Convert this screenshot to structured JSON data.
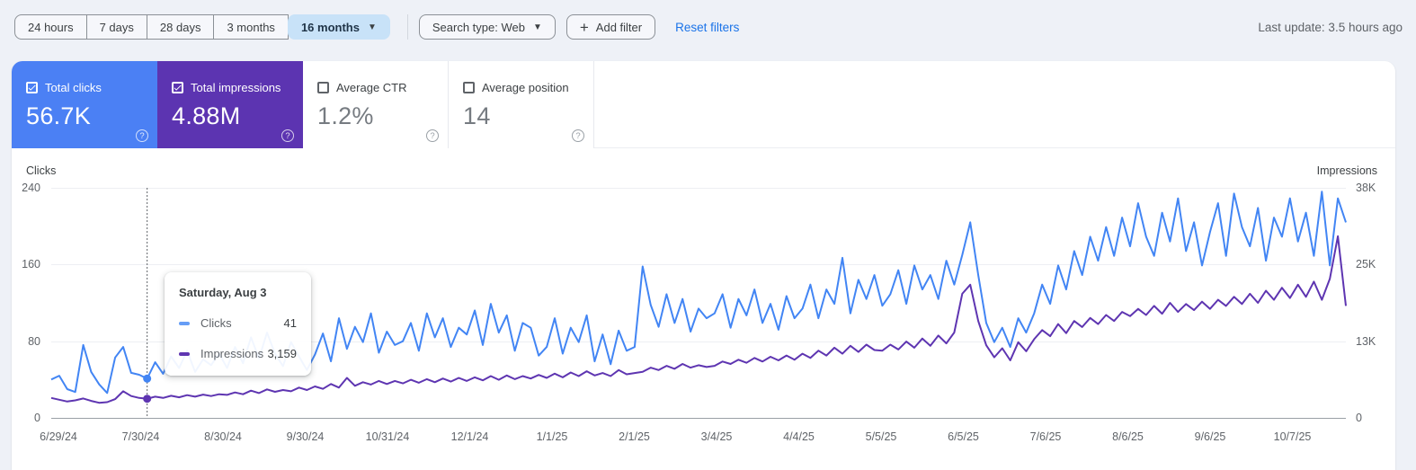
{
  "toolbar": {
    "date_ranges": [
      {
        "label": "24 hours",
        "selected": false
      },
      {
        "label": "7 days",
        "selected": false
      },
      {
        "label": "28 days",
        "selected": false
      },
      {
        "label": "3 months",
        "selected": false
      },
      {
        "label": "16 months",
        "selected": true
      }
    ],
    "search_type": "Search type: Web",
    "add_filter": "Add filter",
    "reset_filters": "Reset filters",
    "last_update": "Last update: 3.5 hours ago"
  },
  "metrics": [
    {
      "label": "Total clicks",
      "value": "56.7K",
      "checked": true,
      "bg": "#4b80f4",
      "fg": "#ffffff"
    },
    {
      "label": "Total impressions",
      "value": "4.88M",
      "checked": true,
      "bg": "#5c34b1",
      "fg": "#ffffff"
    },
    {
      "label": "Average CTR",
      "value": "1.2%",
      "checked": false,
      "bg": "#ffffff",
      "fg": "#767b81"
    },
    {
      "label": "Average position",
      "value": "14",
      "checked": false,
      "bg": "#ffffff",
      "fg": "#767b81"
    }
  ],
  "colors": {
    "link": "#1a73e8",
    "selected_chip_bg": "#c8e2f8",
    "clicks_line": "#4285f4",
    "impressions_line": "#5e35b1",
    "tooltip_clicks_dash": "#669df6",
    "tooltip_impressions_dash": "#5e35b1"
  },
  "chart_data": {
    "type": "line",
    "left_axis": {
      "title": "Clicks",
      "ticks": [
        "0",
        "80",
        "160",
        "240"
      ],
      "max": 240
    },
    "right_axis": {
      "title": "Impressions",
      "ticks": [
        "0",
        "13K",
        "25K",
        "38K"
      ],
      "max": 38000
    },
    "x_tick_labels": [
      "6/29/24",
      "7/30/24",
      "8/30/24",
      "9/30/24",
      "10/31/24",
      "12/1/24",
      "1/1/25",
      "2/1/25",
      "3/4/25",
      "4/4/25",
      "5/5/25",
      "6/5/25",
      "7/6/25",
      "8/6/25",
      "9/6/25",
      "10/7/25"
    ],
    "grid": true,
    "legend_position": "tooltip",
    "series": [
      {
        "name": "Clicks",
        "axis": "left",
        "color": "#4285f4",
        "values": [
          40,
          44,
          30,
          27,
          76,
          48,
          35,
          26,
          63,
          74,
          47,
          45,
          41,
          58,
          46,
          64,
          52,
          70,
          48,
          61,
          55,
          67,
          52,
          74,
          57,
          84,
          62,
          89,
          67,
          54,
          79,
          64,
          50,
          66,
          88,
          59,
          104,
          72,
          95,
          79,
          109,
          68,
          90,
          76,
          80,
          99,
          70,
          109,
          84,
          104,
          74,
          94,
          87,
          112,
          76,
          119,
          89,
          107,
          70,
          99,
          94,
          65,
          74,
          104,
          67,
          94,
          79,
          107,
          59,
          87,
          56,
          91,
          70,
          74,
          158,
          118,
          95,
          129,
          99,
          124,
          90,
          114,
          104,
          109,
          129,
          94,
          124,
          107,
          134,
          99,
          119,
          92,
          127,
          104,
          114,
          139,
          104,
          134,
          119,
          167,
          109,
          144,
          124,
          149,
          117,
          129,
          154,
          119,
          159,
          134,
          149,
          124,
          164,
          139,
          170,
          204,
          149,
          99,
          79,
          94,
          74,
          104,
          89,
          109,
          139,
          119,
          159,
          134,
          174,
          149,
          189,
          164,
          199,
          169,
          209,
          179,
          224,
          189,
          169,
          214,
          184,
          229,
          174,
          204,
          159,
          194,
          224,
          169,
          234,
          199,
          179,
          219,
          164,
          209,
          189,
          229,
          184,
          214,
          169,
          236,
          159,
          229,
          204
        ]
      },
      {
        "name": "Impressions",
        "axis": "right",
        "color": "#5e35b1",
        "values": [
          3300,
          3000,
          2700,
          2900,
          3200,
          2800,
          2500,
          2600,
          3100,
          4400,
          3600,
          3300,
          3159,
          3500,
          3300,
          3650,
          3400,
          3750,
          3500,
          3850,
          3600,
          3900,
          3800,
          4200,
          3900,
          4500,
          4100,
          4700,
          4300,
          4600,
          4400,
          5000,
          4600,
          5200,
          4800,
          5600,
          5000,
          6600,
          5300,
          5900,
          5500,
          6100,
          5600,
          6100,
          5700,
          6300,
          5800,
          6400,
          5900,
          6500,
          6000,
          6600,
          6100,
          6700,
          6200,
          6900,
          6300,
          7000,
          6400,
          6900,
          6500,
          7100,
          6600,
          7300,
          6700,
          7500,
          6900,
          7700,
          7000,
          7400,
          6900,
          7900,
          7200,
          7400,
          7600,
          8300,
          7900,
          8600,
          8100,
          8900,
          8300,
          8700,
          8400,
          8600,
          9300,
          8900,
          9600,
          9100,
          9900,
          9300,
          10100,
          9500,
          10300,
          9600,
          10600,
          9900,
          11100,
          10300,
          11600,
          10600,
          11900,
          10900,
          12100,
          11200,
          11100,
          12100,
          11300,
          12600,
          11600,
          13100,
          11900,
          13600,
          12300,
          14100,
          20500,
          22000,
          16000,
          12000,
          10000,
          11500,
          9500,
          12500,
          11000,
          13000,
          14500,
          13500,
          15500,
          14000,
          16000,
          15000,
          16500,
          15500,
          17000,
          16000,
          17500,
          16800,
          18000,
          17000,
          18500,
          17200,
          19000,
          17500,
          18800,
          17800,
          19200,
          18000,
          19500,
          18500,
          20000,
          18800,
          20500,
          19000,
          21000,
          19500,
          21500,
          19800,
          22000,
          20000,
          22500,
          19500,
          23000,
          30000,
          18500
        ]
      }
    ],
    "hover": {
      "point_index": 12,
      "tooltip_title": "Saturday, Aug 3",
      "rows": [
        {
          "label": "Clicks",
          "value": "41",
          "dash_color": "#669df6"
        },
        {
          "label": "Impressions",
          "value": "3,159",
          "dash_color": "#5e35b1"
        }
      ]
    }
  }
}
